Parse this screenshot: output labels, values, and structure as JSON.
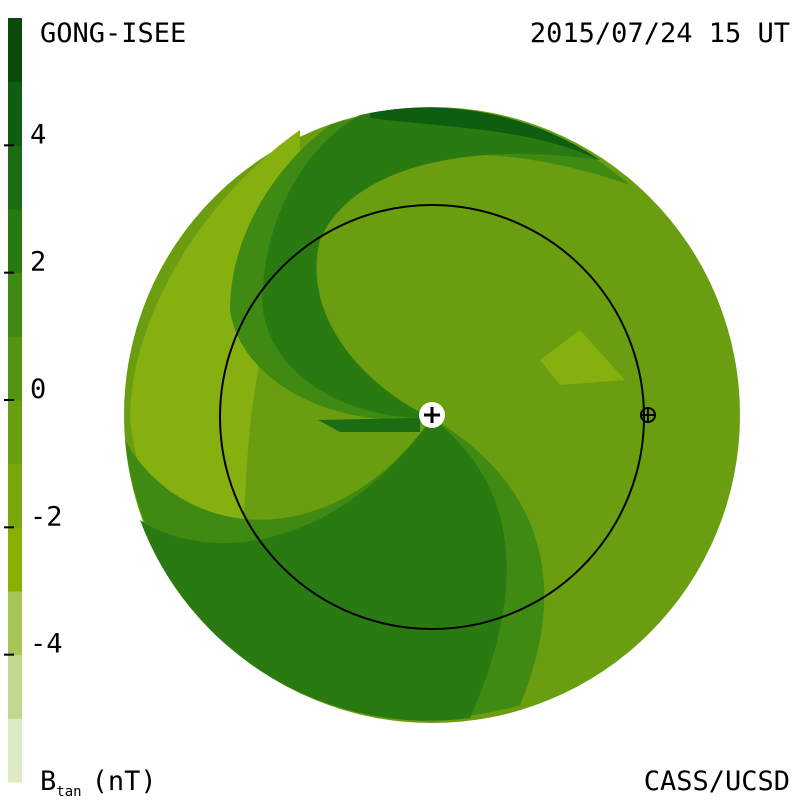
{
  "header": {
    "title": "GONG-ISEE",
    "timestamp": "2015/07/24 15 UT"
  },
  "colorbar": {
    "symbol": "B",
    "subscript": "tan",
    "unit": "(nT)",
    "ticks": [
      4,
      2,
      0,
      -2,
      -4
    ],
    "range": [
      -6,
      6
    ],
    "colors": [
      "#dfe9c4",
      "#c3d98f",
      "#a6c65a",
      "#88b000",
      "#7aa80a",
      "#6a9e10",
      "#559412",
      "#3f8a12",
      "#2a7a12",
      "#1b6c12",
      "#0f5e0f",
      "#0a4a0a"
    ]
  },
  "footer": {
    "credit": "CASS/UCSD"
  }
}
